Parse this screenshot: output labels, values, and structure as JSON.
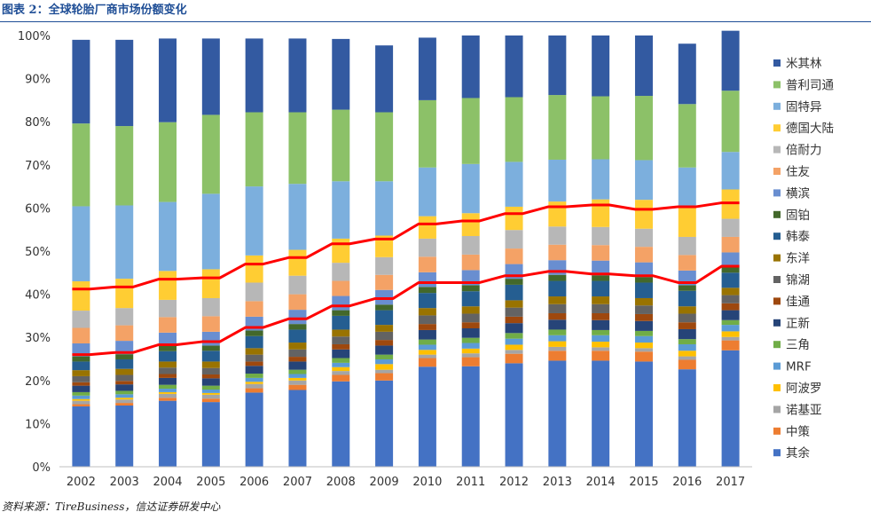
{
  "header": {
    "title": "图表 2：全球轮胎厂商市场份额变化"
  },
  "footer": {
    "source": "资料来源：TireBusiness，信达证券研发中心"
  },
  "chart_data": {
    "type": "bar",
    "stacked": true,
    "title": "图表 2：全球轮胎厂商市场份额变化",
    "xlabel": "",
    "ylabel": "",
    "ylim": [
      0,
      100
    ],
    "y_ticks": [
      "0%",
      "10%",
      "20%",
      "30%",
      "40%",
      "50%",
      "60%",
      "70%",
      "80%",
      "90%",
      "100%"
    ],
    "grid": false,
    "legend_position": "right",
    "categories": [
      "2002",
      "2003",
      "2004",
      "2005",
      "2006",
      "2007",
      "2008",
      "2009",
      "2010",
      "2011",
      "2012",
      "2013",
      "2014",
      "2015",
      "2016",
      "2017"
    ],
    "series": [
      {
        "name": "其余",
        "color": "#4472c4",
        "values": [
          14.0,
          14.2,
          15.3,
          15.0,
          17.2,
          17.8,
          19.8,
          20.0,
          23.2,
          23.3,
          24.0,
          24.6,
          24.6,
          24.4,
          22.6,
          27.0
        ]
      },
      {
        "name": "中策",
        "color": "#ed7d31",
        "values": [
          0.5,
          0.6,
          0.7,
          0.8,
          1.0,
          1.2,
          1.5,
          1.7,
          2.0,
          2.1,
          2.2,
          2.3,
          2.3,
          2.3,
          2.2,
          2.3
        ]
      },
      {
        "name": "诺基亚",
        "color": "#a5a5a5",
        "values": [
          0.8,
          0.8,
          0.9,
          0.9,
          1.0,
          1.0,
          0.9,
          0.8,
          0.8,
          0.9,
          0.9,
          0.9,
          0.8,
          0.8,
          0.8,
          0.8
        ]
      },
      {
        "name": "阿波罗",
        "color": "#ffc000",
        "values": [
          0.4,
          0.4,
          0.4,
          0.4,
          0.5,
          0.6,
          0.9,
          1.3,
          1.1,
          1.1,
          1.2,
          1.3,
          1.3,
          1.3,
          1.3,
          1.3
        ]
      },
      {
        "name": "MRF",
        "color": "#5b9bd5",
        "values": [
          0.8,
          0.8,
          0.8,
          0.8,
          0.9,
          0.9,
          1.0,
          1.1,
          1.2,
          1.3,
          1.4,
          1.4,
          1.5,
          1.5,
          1.5,
          1.5
        ]
      },
      {
        "name": "三角",
        "color": "#70ad47",
        "values": [
          0.8,
          0.8,
          0.9,
          0.9,
          1.0,
          1.0,
          1.1,
          1.1,
          1.2,
          1.2,
          1.3,
          1.3,
          1.2,
          1.2,
          1.2,
          1.1
        ]
      },
      {
        "name": "正新",
        "color": "#264478",
        "values": [
          1.5,
          1.5,
          1.6,
          1.7,
          1.8,
          1.9,
          2.0,
          2.1,
          2.2,
          2.2,
          2.3,
          2.3,
          2.3,
          2.3,
          2.3,
          2.3
        ]
      },
      {
        "name": "佳通",
        "color": "#9e480e",
        "values": [
          0.8,
          0.8,
          0.9,
          0.9,
          1.0,
          1.1,
          1.2,
          1.3,
          1.4,
          1.4,
          1.5,
          1.5,
          1.6,
          1.6,
          1.6,
          1.6
        ]
      },
      {
        "name": "锦湖",
        "color": "#636363",
        "values": [
          1.4,
          1.4,
          1.5,
          1.5,
          1.6,
          1.7,
          1.8,
          1.9,
          2.0,
          2.0,
          2.1,
          2.1,
          2.1,
          2.0,
          2.0,
          1.9
        ]
      },
      {
        "name": "东洋",
        "color": "#997300",
        "values": [
          1.4,
          1.4,
          1.4,
          1.5,
          1.5,
          1.6,
          1.6,
          1.6,
          1.7,
          1.7,
          1.7,
          1.8,
          1.8,
          1.7,
          1.7,
          1.7
        ]
      },
      {
        "name": "韩泰",
        "color": "#255e91",
        "values": [
          2.0,
          2.2,
          2.4,
          2.5,
          2.8,
          3.0,
          3.2,
          3.4,
          3.5,
          3.5,
          3.6,
          3.6,
          3.6,
          3.6,
          3.6,
          3.5
        ]
      },
      {
        "name": "固铂",
        "color": "#43682b",
        "values": [
          1.2,
          1.2,
          1.2,
          1.2,
          1.3,
          1.3,
          1.3,
          1.3,
          1.4,
          1.4,
          1.4,
          1.4,
          1.3,
          1.3,
          1.3,
          1.3
        ]
      },
      {
        "name": "横滨",
        "color": "#698ed0",
        "values": [
          3.0,
          3.1,
          3.1,
          3.2,
          3.2,
          3.3,
          3.3,
          3.4,
          3.4,
          3.5,
          3.4,
          3.4,
          3.4,
          3.4,
          3.4,
          3.4
        ]
      },
      {
        "name": "住友",
        "color": "#f4a266",
        "values": [
          3.6,
          3.6,
          3.6,
          3.6,
          3.6,
          3.6,
          3.5,
          3.5,
          3.6,
          3.6,
          3.6,
          3.6,
          3.6,
          3.6,
          3.6,
          3.6
        ]
      },
      {
        "name": "倍耐力",
        "color": "#b7b7b7",
        "values": [
          4.0,
          4.0,
          4.0,
          4.2,
          4.3,
          4.3,
          4.2,
          4.1,
          4.2,
          4.3,
          4.3,
          4.2,
          4.2,
          4.2,
          4.2,
          4.2
        ]
      },
      {
        "name": "德国大陆",
        "color": "#ffcd33",
        "values": [
          6.8,
          6.8,
          6.7,
          6.7,
          6.3,
          6.0,
          5.6,
          5.0,
          5.2,
          5.3,
          5.4,
          5.8,
          6.4,
          6.7,
          7.0,
          6.8
        ]
      },
      {
        "name": "固特异",
        "color": "#7cafdd",
        "values": [
          17.4,
          17.0,
          16.0,
          17.5,
          16.0,
          15.3,
          13.3,
          12.6,
          11.3,
          11.4,
          10.4,
          9.7,
          9.3,
          9.2,
          9.1,
          8.7
        ]
      },
      {
        "name": "普利司通",
        "color": "#8cc168",
        "values": [
          19.2,
          18.4,
          18.5,
          18.3,
          17.2,
          16.6,
          16.6,
          16.0,
          15.6,
          15.3,
          15.0,
          15.0,
          14.6,
          14.9,
          14.7,
          14.2
        ]
      },
      {
        "name": "米其林",
        "color": "#335aa1",
        "values": [
          19.4,
          20.0,
          19.4,
          17.7,
          17.1,
          17.1,
          16.4,
          15.5,
          14.5,
          14.5,
          14.3,
          13.8,
          14.1,
          14.0,
          14.0,
          13.9
        ]
      }
    ],
    "lines": [
      {
        "color": "#ff0000",
        "values": [
          26.0,
          26.5,
          28.3,
          29.0,
          32.3,
          34.3,
          37.3,
          39.0,
          42.7,
          42.7,
          44.3,
          45.3,
          44.7,
          44.3,
          42.7,
          46.5
        ]
      },
      {
        "color": "#ff0000",
        "values": [
          41.2,
          41.7,
          43.5,
          43.8,
          47.0,
          48.5,
          51.7,
          52.8,
          56.3,
          57.0,
          58.7,
          60.3,
          60.7,
          59.7,
          60.3,
          61.2
        ]
      }
    ]
  }
}
